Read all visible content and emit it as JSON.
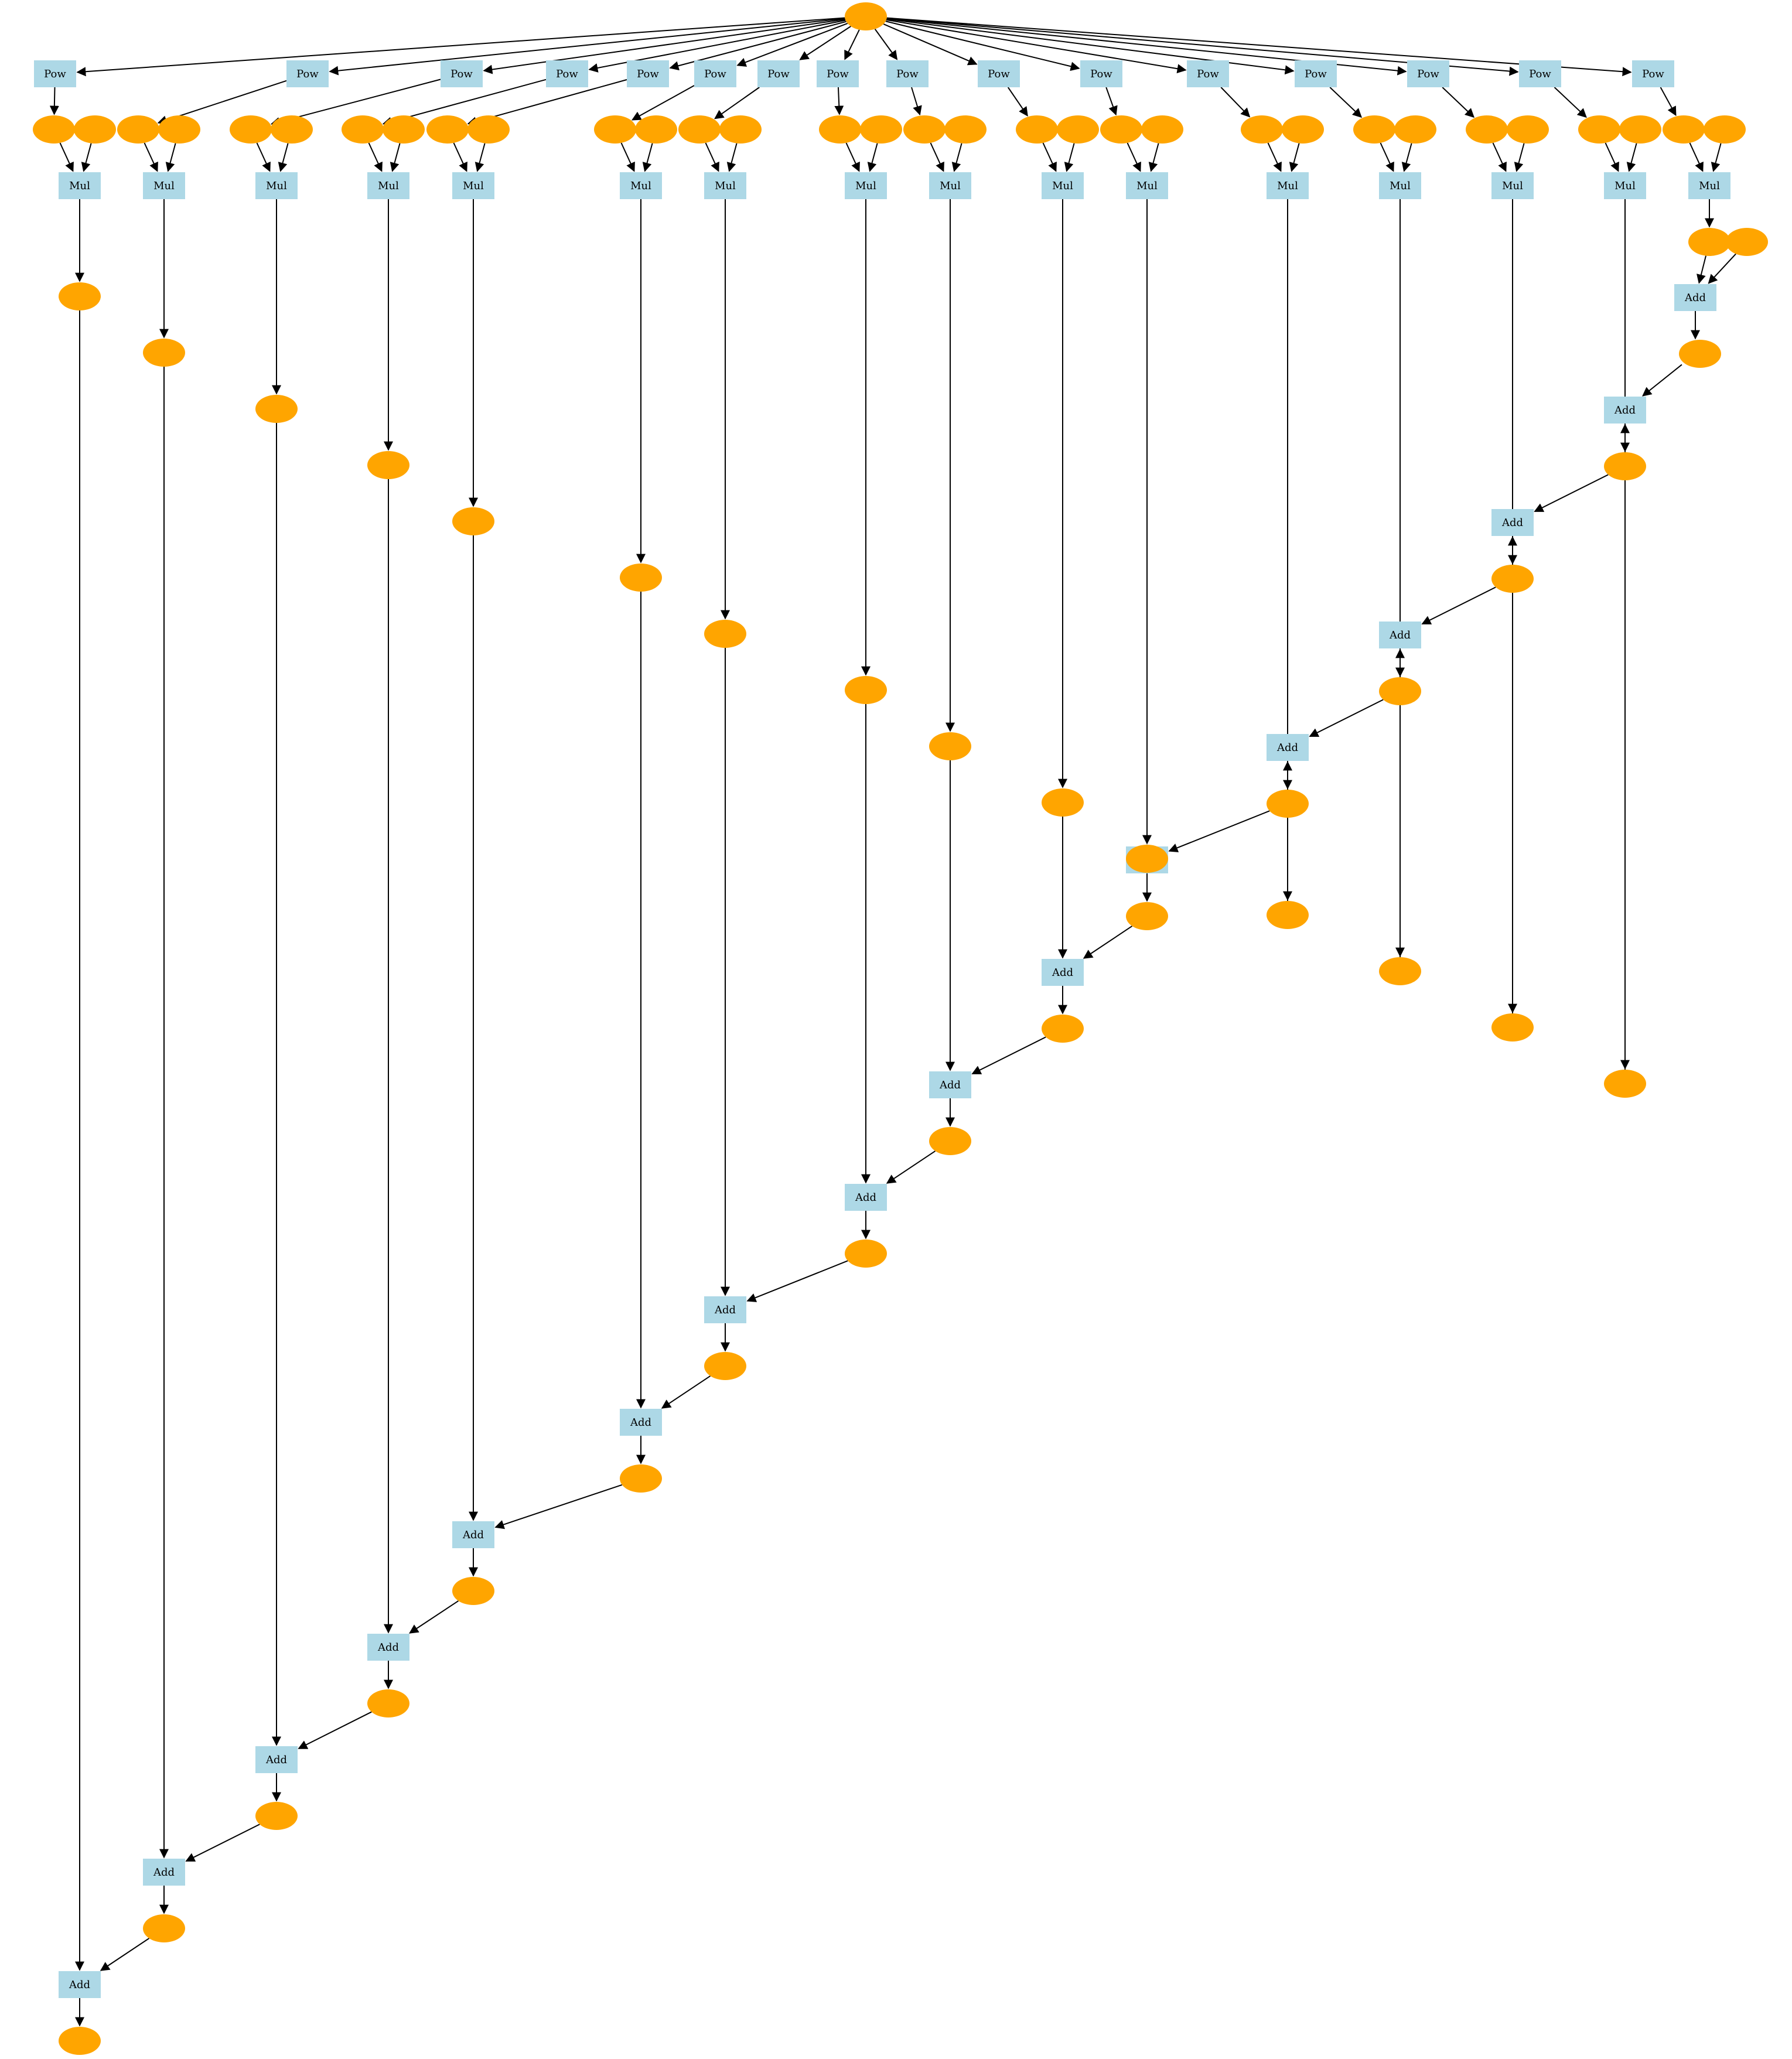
{
  "graph": {
    "type": "computation-graph",
    "colors": {
      "operation_node": "#add8e6",
      "value_node": "#ffa500",
      "edge": "#000000",
      "background": "#ffffff"
    },
    "icon_names": {
      "operation_node": "rectangle",
      "value_node": "ellipse"
    },
    "labels": {
      "pow": "Pow",
      "mul": "Mul",
      "add": "Add"
    },
    "columns": 17,
    "node_counts": {
      "Pow": 16,
      "Mul": 16,
      "Add": 16,
      "value": 66
    }
  }
}
